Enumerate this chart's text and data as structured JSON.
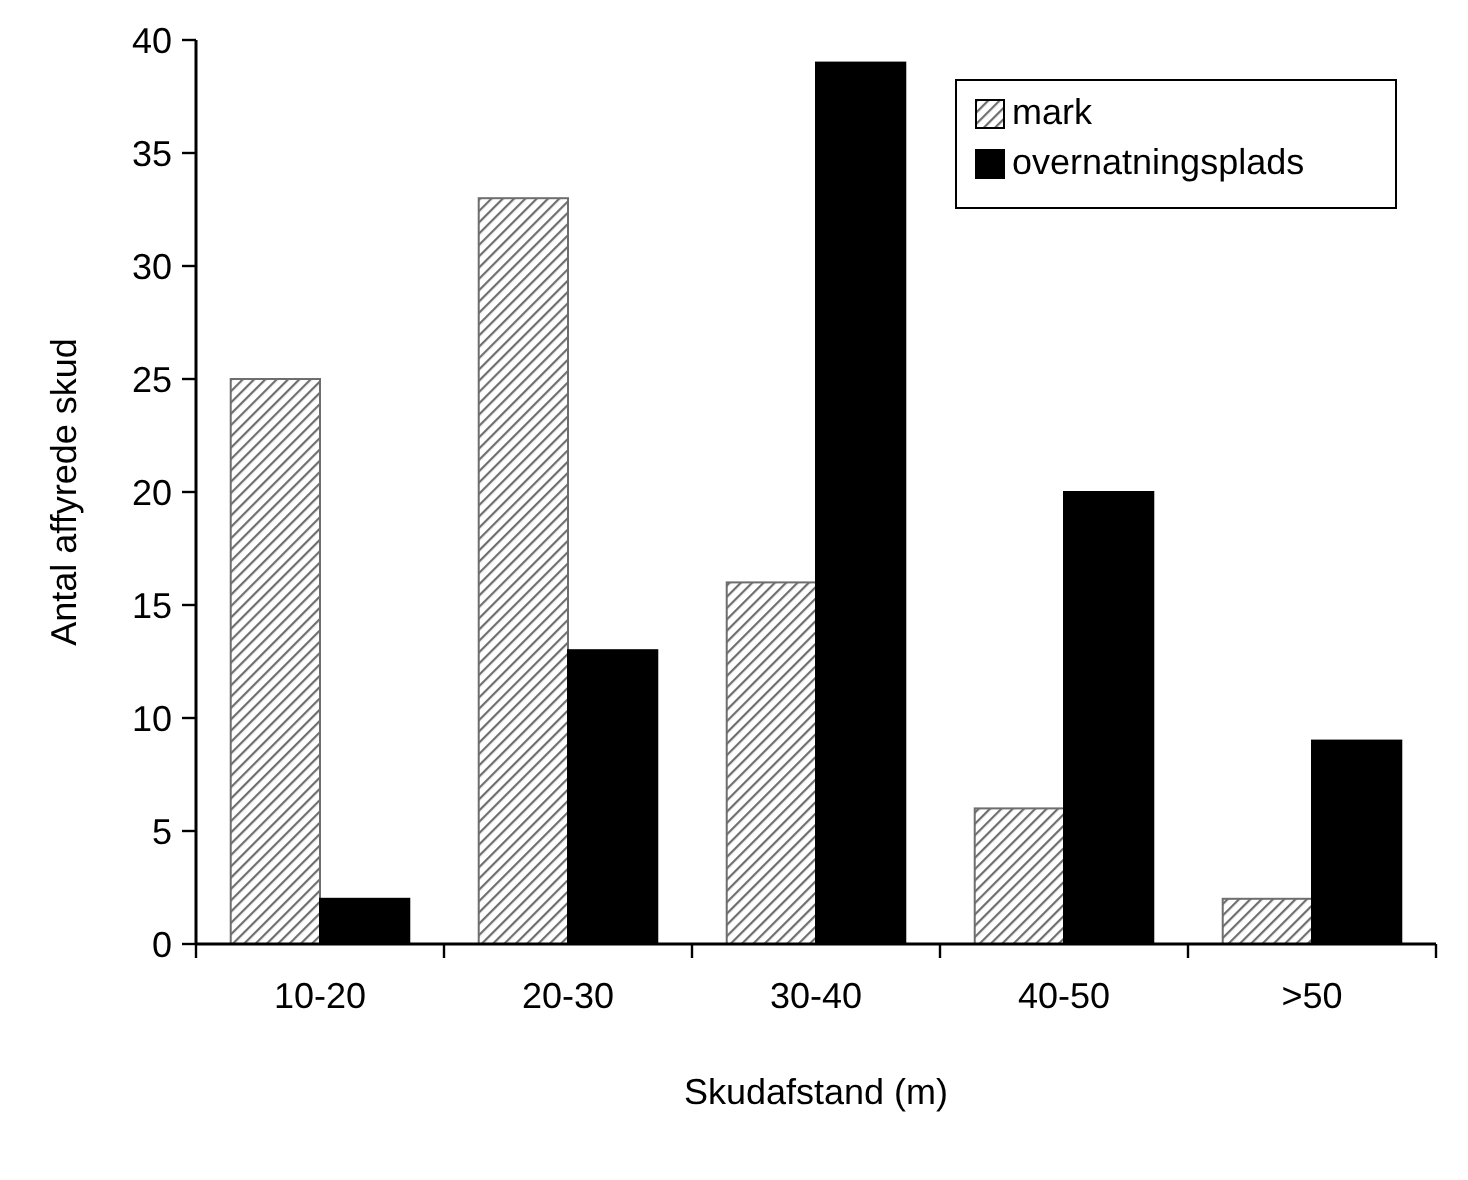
{
  "chart_data": {
    "type": "bar",
    "xlabel": "Skudafstand (m)",
    "ylabel": "Antal affyrede skud",
    "categories": [
      "10-20",
      "20-30",
      "30-40",
      "40-50",
      ">50"
    ],
    "series": [
      {
        "name": "mark",
        "color": "#6e6e6e",
        "values": [
          25,
          33,
          16,
          6,
          2
        ]
      },
      {
        "name": "overnatningsplads",
        "color": "#000000",
        "values": [
          2,
          13,
          39,
          20,
          9
        ]
      }
    ],
    "ylim": [
      0,
      40
    ],
    "yticks": [
      0,
      5,
      10,
      15,
      20,
      25,
      30,
      35,
      40
    ],
    "grid": false,
    "legend": "top right"
  }
}
